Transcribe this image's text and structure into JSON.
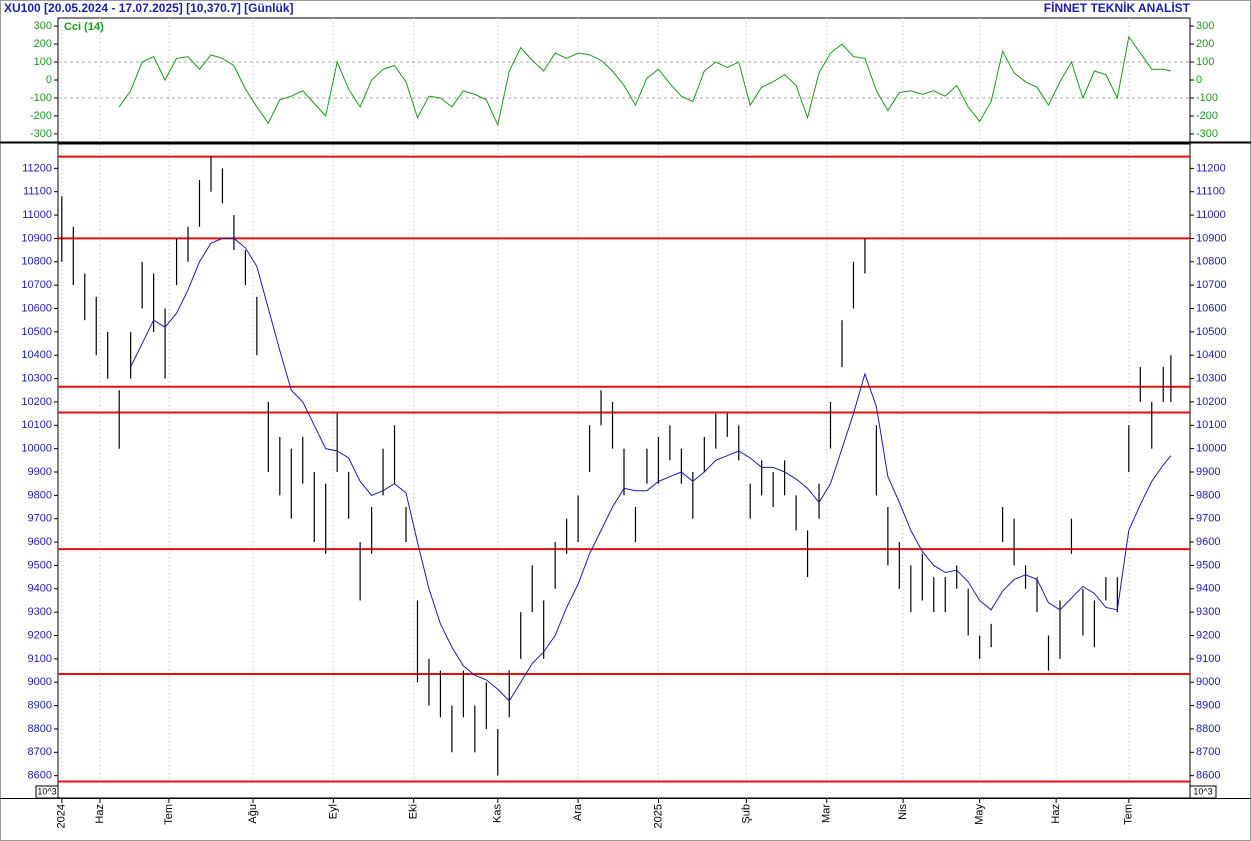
{
  "header": {
    "title": "XU100  [20.05.2024 - 17.07.2025]  [10,370.7]  [Günlük]",
    "brand": "FİNNET TEKNİK ANALİST"
  },
  "chart_data": [
    {
      "type": "line",
      "series": [
        {
          "name": "Cci (14)",
          "color": "#1a9a1a",
          "values": [
            null,
            null,
            null,
            null,
            null,
            -150,
            -60,
            100,
            130,
            0,
            120,
            130,
            60,
            140,
            120,
            80,
            -50,
            -150,
            -240,
            -110,
            -90,
            -60,
            -130,
            -200,
            100,
            -50,
            -150,
            0,
            60,
            80,
            -10,
            -210,
            -90,
            -100,
            -150,
            -60,
            -80,
            -110,
            -250,
            50,
            180,
            110,
            50,
            150,
            120,
            150,
            140,
            110,
            50,
            -30,
            -140,
            10,
            60,
            -20,
            -90,
            -120,
            50,
            100,
            70,
            100,
            -140,
            -40,
            -10,
            30,
            -30,
            -210,
            40,
            150,
            200,
            130,
            120,
            -60,
            -170,
            -70,
            -60,
            -80,
            -60,
            -90,
            -30,
            -150,
            -230,
            -120,
            160,
            40,
            -10,
            -40,
            -140,
            -10,
            100,
            -100,
            50,
            30,
            -100,
            240,
            150,
            60,
            60,
            50
          ]
        }
      ],
      "x": [
        0,
        3,
        6,
        9,
        12,
        15,
        18,
        21,
        24,
        27,
        30,
        33,
        36,
        39,
        42,
        45,
        48,
        51,
        54,
        57,
        60,
        63,
        66,
        69,
        72,
        75,
        78,
        81,
        84,
        87,
        90,
        93,
        96,
        99,
        102,
        105,
        108,
        111,
        114,
        117,
        120,
        123,
        126,
        129,
        132,
        135,
        138,
        141,
        144,
        147,
        150,
        153,
        156,
        159,
        162,
        165,
        168,
        171,
        174,
        177,
        180,
        183,
        186,
        189,
        192,
        195,
        198,
        201,
        204,
        207,
        210,
        213,
        216,
        219,
        222,
        225,
        228,
        231,
        234,
        237,
        240,
        243,
        246,
        249,
        252,
        255,
        258,
        261,
        264,
        267,
        270,
        273,
        276,
        279,
        282,
        285,
        288,
        290
      ],
      "xlim": [
        -1,
        295
      ],
      "ylim": [
        -345,
        345
      ],
      "yticks": [
        300,
        200,
        100,
        0,
        -100,
        -200,
        -300
      ],
      "levels": [
        100,
        -100
      ],
      "level_color": "#aaaaaa"
    },
    {
      "type": "range-bar",
      "bar_color": "#000000",
      "x": [
        0,
        3,
        6,
        9,
        12,
        15,
        18,
        21,
        24,
        27,
        30,
        33,
        36,
        39,
        42,
        45,
        48,
        51,
        54,
        57,
        60,
        63,
        66,
        69,
        72,
        75,
        78,
        81,
        84,
        87,
        90,
        93,
        96,
        99,
        102,
        105,
        108,
        111,
        114,
        117,
        120,
        123,
        126,
        129,
        132,
        135,
        138,
        141,
        144,
        147,
        150,
        153,
        156,
        159,
        162,
        165,
        168,
        171,
        174,
        177,
        180,
        183,
        186,
        189,
        192,
        195,
        198,
        201,
        204,
        207,
        210,
        213,
        216,
        219,
        222,
        225,
        228,
        231,
        234,
        237,
        240,
        243,
        246,
        249,
        252,
        255,
        258,
        261,
        264,
        267,
        270,
        273,
        276,
        279,
        282,
        285,
        288,
        290
      ],
      "high": [
        11080,
        10950,
        10750,
        10650,
        10500,
        10250,
        10500,
        10800,
        10750,
        10600,
        10900,
        10950,
        11150,
        11250,
        11200,
        11000,
        10850,
        10650,
        10200,
        10050,
        10000,
        10050,
        9900,
        9850,
        10150,
        9900,
        9600,
        9750,
        10000,
        10100,
        9750,
        9350,
        9100,
        9050,
        8900,
        9050,
        8900,
        9000,
        8800,
        9050,
        9300,
        9500,
        9350,
        9600,
        9700,
        9800,
        10100,
        10250,
        10200,
        10000,
        9750,
        10000,
        10050,
        10100,
        10000,
        9900,
        10050,
        10150,
        10150,
        10100,
        9850,
        9950,
        9900,
        9950,
        9800,
        9650,
        9850,
        10200,
        10550,
        10800,
        10900,
        10100,
        9750,
        9600,
        9500,
        9550,
        9450,
        9450,
        9500,
        9400,
        9200,
        9250,
        9750,
        9700,
        9500,
        9450,
        9200,
        9350,
        9700,
        9400,
        9350,
        9450,
        9450,
        10100,
        10350,
        10200,
        10350,
        10400
      ],
      "low": [
        10800,
        10700,
        10550,
        10400,
        10300,
        10000,
        10300,
        10600,
        10500,
        10300,
        10700,
        10800,
        10950,
        11100,
        11050,
        10850,
        10700,
        10400,
        9900,
        9800,
        9700,
        9850,
        9600,
        9550,
        9900,
        9700,
        9350,
        9550,
        9800,
        9850,
        9600,
        9000,
        8900,
        8850,
        8700,
        8850,
        8700,
        8800,
        8600,
        8850,
        9100,
        9300,
        9100,
        9400,
        9550,
        9600,
        9900,
        10100,
        10000,
        9800,
        9600,
        9850,
        9850,
        9950,
        9850,
        9700,
        9900,
        10000,
        10050,
        9950,
        9700,
        9800,
        9750,
        9800,
        9650,
        9450,
        9700,
        10000,
        10350,
        10600,
        10750,
        9800,
        9500,
        9400,
        9300,
        9350,
        9300,
        9300,
        9400,
        9200,
        9100,
        9150,
        9600,
        9500,
        9400,
        9300,
        9050,
        9100,
        9550,
        9200,
        9150,
        9350,
        9300,
        9900,
        10200,
        10000,
        10200,
        10200
      ],
      "ma_color": "#1c1ca8",
      "ma": [
        null,
        null,
        null,
        null,
        null,
        null,
        10350,
        10450,
        10550,
        10520,
        10580,
        10680,
        10800,
        10880,
        10900,
        10900,
        10860,
        10780,
        10600,
        10420,
        10250,
        10200,
        10100,
        10000,
        9990,
        9960,
        9860,
        9800,
        9820,
        9850,
        9810,
        9600,
        9400,
        9250,
        9150,
        9070,
        9030,
        9010,
        8970,
        8920,
        9000,
        9080,
        9130,
        9200,
        9320,
        9420,
        9550,
        9650,
        9750,
        9830,
        9820,
        9820,
        9860,
        9880,
        9900,
        9860,
        9900,
        9950,
        9970,
        9990,
        9960,
        9920,
        9920,
        9900,
        9870,
        9830,
        9770,
        9850,
        10000,
        10150,
        10320,
        10180,
        9880,
        9770,
        9650,
        9560,
        9500,
        9470,
        9480,
        9430,
        9350,
        9310,
        9390,
        9440,
        9460,
        9440,
        9340,
        9310,
        9360,
        9410,
        9380,
        9320,
        9310,
        9650,
        9760,
        9860,
        9930,
        9970
      ],
      "xlim": [
        -1,
        295
      ],
      "ylim": [
        8560,
        11300
      ],
      "yticks": [
        8600,
        8700,
        8800,
        8900,
        9000,
        9100,
        9200,
        9300,
        9400,
        9500,
        9600,
        9700,
        9800,
        9900,
        10000,
        10100,
        10200,
        10300,
        10400,
        10500,
        10600,
        10700,
        10800,
        10900,
        11000,
        11100,
        11200
      ],
      "xticks": [
        {
          "value": 0,
          "label": "2024"
        },
        {
          "value": 10,
          "label": "Haz"
        },
        {
          "value": 28,
          "label": "Tem"
        },
        {
          "value": 50,
          "label": "Ağu"
        },
        {
          "value": 71,
          "label": "Eyl"
        },
        {
          "value": 92,
          "label": "Eki"
        },
        {
          "value": 114,
          "label": "Kas"
        },
        {
          "value": 135,
          "label": "Ara"
        },
        {
          "value": 156,
          "label": "2025"
        },
        {
          "value": 179,
          "label": "Şub"
        },
        {
          "value": 200,
          "label": "Mar"
        },
        {
          "value": 220,
          "label": "Nis"
        },
        {
          "value": 240,
          "label": "May"
        },
        {
          "value": 260,
          "label": "Haz"
        },
        {
          "value": 279,
          "label": "Tem"
        }
      ],
      "levels": [
        11250,
        10900,
        10265,
        10155,
        9570,
        9035,
        8575
      ],
      "level_color": "#e01010",
      "scale_label": "10^3"
    }
  ]
}
